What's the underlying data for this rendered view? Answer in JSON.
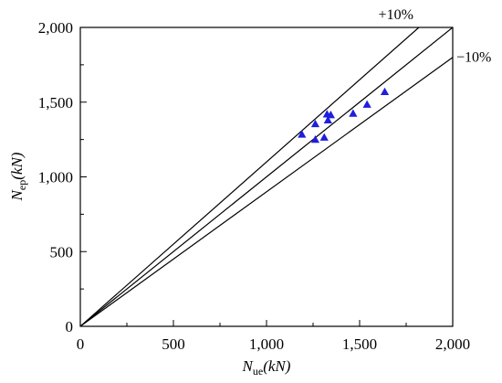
{
  "chart_data": {
    "type": "scatter",
    "title": "",
    "xlabel": {
      "symbol": "N",
      "subscript": "ue",
      "unit": "(kN)"
    },
    "ylabel": {
      "symbol": "N",
      "subscript": "ep",
      "unit": "(kN)"
    },
    "xlim": [
      0,
      2000
    ],
    "ylim": [
      0,
      2000
    ],
    "x_ticks": [
      0,
      500,
      1000,
      1500,
      2000
    ],
    "x_tick_labels": [
      "0",
      "500",
      "1,000",
      "1,500",
      "2,000"
    ],
    "y_ticks": [
      0,
      500,
      1000,
      1500,
      2000
    ],
    "y_tick_labels": [
      "0",
      "500",
      "1,000",
      "1,500",
      "2,000"
    ],
    "grid": false,
    "marker_color": "#1f1fdd",
    "line_color": "#000000",
    "reference_lines": [
      {
        "label": "+10%",
        "slope": 1.1
      },
      {
        "label": "",
        "slope": 1.0
      },
      {
        "label": "−10%",
        "slope": 0.9
      }
    ],
    "series": [
      {
        "marker": "triangle",
        "points": [
          {
            "x": 1190,
            "y": 1285
          },
          {
            "x": 1262,
            "y": 1355
          },
          {
            "x": 1262,
            "y": 1250
          },
          {
            "x": 1310,
            "y": 1265
          },
          {
            "x": 1325,
            "y": 1420
          },
          {
            "x": 1330,
            "y": 1380
          },
          {
            "x": 1345,
            "y": 1415
          },
          {
            "x": 1465,
            "y": 1425
          },
          {
            "x": 1540,
            "y": 1485
          },
          {
            "x": 1635,
            "y": 1570
          }
        ]
      }
    ]
  }
}
